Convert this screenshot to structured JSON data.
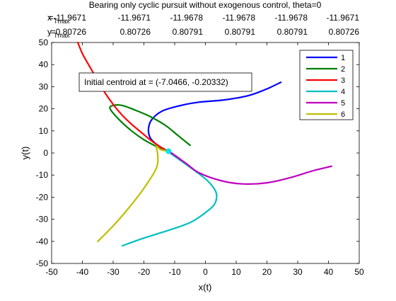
{
  "chart_data": {
    "type": "line",
    "title": "Bearing only cyclic pursuit without exogenous control, theta=0",
    "header_rows": [
      {
        "label_main": "x",
        "label_sub": "Tmax",
        "values": [
          "=-11.9671",
          "-11.9671",
          "-11.9678",
          "-11.9678",
          "-11.9678",
          "-11.9671"
        ]
      },
      {
        "label_main": "y",
        "label_sub": "Tmax",
        "values": [
          "=0.80726",
          "0.80726",
          "0.80791",
          "0.80791",
          "0.80791",
          "0.80726"
        ]
      }
    ],
    "xlabel": "x(t)",
    "ylabel": "y(t)",
    "xlim": [
      -50,
      50
    ],
    "ylim": [
      -50,
      50
    ],
    "xticks": [
      -50,
      -40,
      -30,
      -20,
      -10,
      0,
      10,
      20,
      30,
      40,
      50
    ],
    "yticks": [
      -50,
      -40,
      -30,
      -20,
      -10,
      0,
      10,
      20,
      30,
      40,
      50
    ],
    "grid": false,
    "legend_position": "top-right",
    "annotation": "Initial centroid at = (-7.0466,  -0.20332)",
    "centroid_marker": {
      "x": -12,
      "y": 0.8,
      "color": "#00e5e5"
    },
    "series": [
      {
        "name": "1",
        "color": "#0000ff",
        "points": [
          [
            24.5,
            32
          ],
          [
            20,
            29
          ],
          [
            14,
            26
          ],
          [
            6,
            24
          ],
          [
            -2,
            23
          ],
          [
            -8,
            21.5
          ],
          [
            -14,
            19
          ],
          [
            -17.5,
            15
          ],
          [
            -18.5,
            11
          ],
          [
            -18,
            7
          ],
          [
            -16,
            4
          ],
          [
            -13.5,
            1.8
          ],
          [
            -12,
            0.8
          ]
        ]
      },
      {
        "name": "2",
        "color": "#007f00",
        "points": [
          [
            -5,
            3.5
          ],
          [
            -9,
            8
          ],
          [
            -13,
            12.5
          ],
          [
            -18,
            16.5
          ],
          [
            -23,
            19.5
          ],
          [
            -27,
            21.5
          ],
          [
            -30,
            21.5
          ],
          [
            -31,
            20
          ],
          [
            -28,
            15
          ],
          [
            -24,
            10
          ],
          [
            -20,
            6
          ],
          [
            -16,
            3
          ],
          [
            -13.5,
            1.5
          ],
          [
            -12,
            0.8
          ]
        ]
      },
      {
        "name": "3",
        "color": "#ff0000",
        "points": [
          [
            -41.5,
            50
          ],
          [
            -40,
            45
          ],
          [
            -38,
            40
          ],
          [
            -35.5,
            34
          ],
          [
            -33,
            28
          ],
          [
            -30,
            22
          ],
          [
            -27,
            17
          ],
          [
            -24,
            13
          ],
          [
            -21,
            9.5
          ],
          [
            -18,
            6
          ],
          [
            -15.5,
            3.5
          ],
          [
            -13.5,
            1.8
          ],
          [
            -12,
            0.8
          ]
        ]
      },
      {
        "name": "4",
        "color": "#00bfbf",
        "points": [
          [
            -27,
            -42
          ],
          [
            -20,
            -38.5
          ],
          [
            -12,
            -35
          ],
          [
            -5,
            -31.5
          ],
          [
            0,
            -27
          ],
          [
            3,
            -23
          ],
          [
            3.5,
            -18
          ],
          [
            1,
            -13
          ],
          [
            -3,
            -8.5
          ],
          [
            -7,
            -4.5
          ],
          [
            -10,
            -1.5
          ],
          [
            -11.5,
            0
          ],
          [
            -12,
            0.8
          ]
        ]
      },
      {
        "name": "5",
        "color": "#bf00bf",
        "points": [
          [
            41,
            -6
          ],
          [
            35,
            -8
          ],
          [
            28,
            -11
          ],
          [
            20,
            -13.5
          ],
          [
            12,
            -14
          ],
          [
            5,
            -12.5
          ],
          [
            -2,
            -9
          ],
          [
            -6,
            -5
          ],
          [
            -9,
            -2
          ],
          [
            -11,
            0
          ],
          [
            -12,
            0.8
          ]
        ]
      },
      {
        "name": "6",
        "color": "#bfbf00",
        "points": [
          [
            -35,
            -40
          ],
          [
            -30,
            -33
          ],
          [
            -25,
            -25
          ],
          [
            -20,
            -16
          ],
          [
            -16,
            -7
          ],
          [
            -15.5,
            -1
          ],
          [
            -16,
            3
          ],
          [
            -14.5,
            1.5
          ],
          [
            -12,
            0.8
          ]
        ]
      }
    ]
  }
}
